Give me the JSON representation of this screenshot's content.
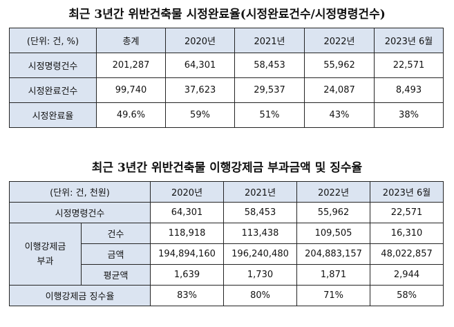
{
  "title1": "최근 3년간 위반건축물 시정완료율(시정완료건수/시정명령건수)",
  "table1": {
    "header": [
      "(단위: 건, %)",
      "총계",
      "2020년",
      "2021년",
      "2022년",
      "2023년 6월"
    ],
    "rows": [
      [
        "시정명령건수",
        "201,287",
        "64,301",
        "58,453",
        "55,962",
        "22,571"
      ],
      [
        "시정완료건수",
        "99,740",
        "37,623",
        "29,537",
        "24,087",
        "8,493"
      ],
      [
        "시정완료율",
        "49.6%",
        "59%",
        "51%",
        "43%",
        "38%"
      ]
    ]
  },
  "title2": "최근 3년간 위반건축물 이행강제금 부과금액 및 징수율",
  "table2": {
    "header": [
      "(단위: 건, 천원)",
      "2020년",
      "2021년",
      "2022년",
      "2023년 6월"
    ],
    "order_row": {
      "label": "시정명령건수",
      "values": [
        "64,301",
        "58,453",
        "55,962",
        "22,571"
      ]
    },
    "levy_group_label": "이행강제금\n부과",
    "levy_rows": [
      {
        "label": "건수",
        "values": [
          "118,918",
          "113,438",
          "109,505",
          "16,310"
        ]
      },
      {
        "label": "금액",
        "values": [
          "194,894,160",
          "196,240,480",
          "204,883,157",
          "48,022,857"
        ]
      },
      {
        "label": "평균액",
        "values": [
          "1,639",
          "1,730",
          "1,871",
          "2,944"
        ]
      }
    ],
    "collection_row": {
      "label": "이행강제금 징수율",
      "values": [
        "83%",
        "80%",
        "71%",
        "58%"
      ]
    }
  }
}
